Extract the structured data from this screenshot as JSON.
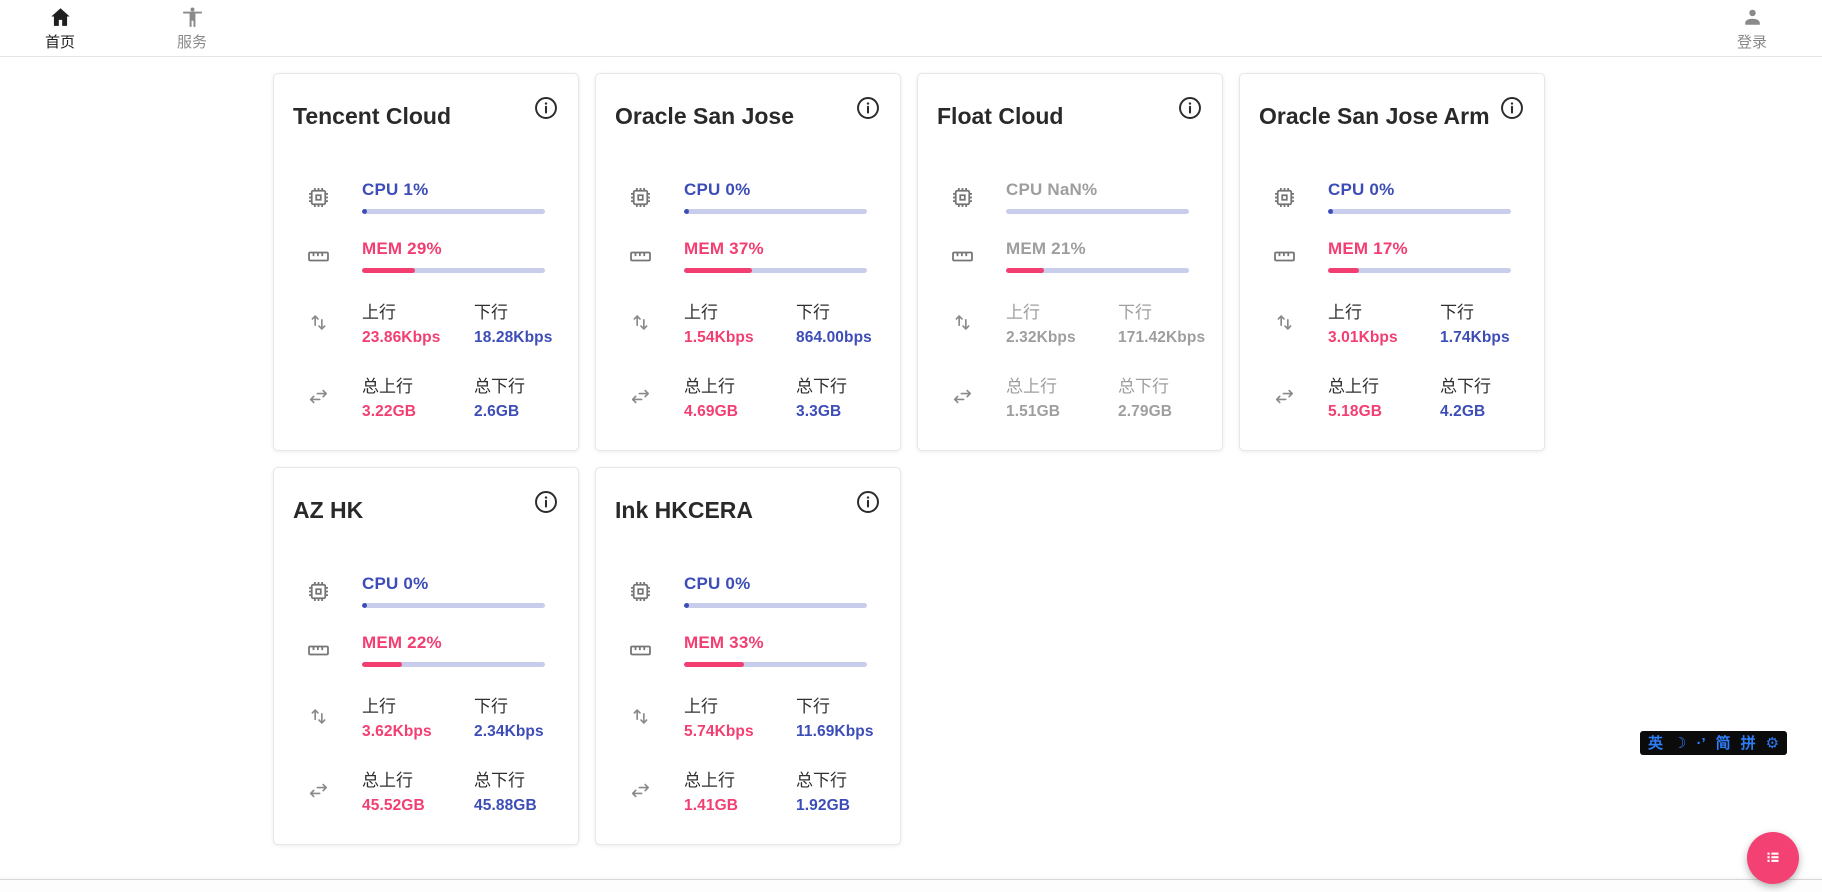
{
  "colors": {
    "accent_blue": "#3D4DB7",
    "accent_pink": "#F23E71",
    "muted_gray": "#9E9E9E",
    "progress_track": "#C9CDEC",
    "ime_blue": "#2E7CF6",
    "fab_pink": "#F34173"
  },
  "nav": {
    "home": {
      "label": "首页"
    },
    "services": {
      "label": "服务"
    },
    "login": {
      "label": "登录"
    }
  },
  "card_labels": {
    "up": "上行",
    "down": "下行",
    "total_up": "总上行",
    "total_down": "总下行"
  },
  "servers": [
    {
      "name": "Tencent Cloud",
      "cpu_text": "CPU 1%",
      "cpu_pct": 1,
      "mem_text": "MEM 29%",
      "mem_pct": 29,
      "up": "23.86Kbps",
      "down": "18.28Kbps",
      "total_up": "3.22GB",
      "total_down": "2.6GB",
      "offline": false
    },
    {
      "name": "Oracle San Jose",
      "cpu_text": "CPU 0%",
      "cpu_pct": 0,
      "mem_text": "MEM 37%",
      "mem_pct": 37,
      "up": "1.54Kbps",
      "down": "864.00bps",
      "total_up": "4.69GB",
      "total_down": "3.3GB",
      "offline": false
    },
    {
      "name": "Float Cloud",
      "cpu_text": "CPU NaN%",
      "cpu_pct": null,
      "mem_text": "MEM 21%",
      "mem_pct": 21,
      "up": "2.32Kbps",
      "down": "171.42Kbps",
      "total_up": "1.51GB",
      "total_down": "2.79GB",
      "offline": true
    },
    {
      "name": "Oracle San Jose Arm",
      "cpu_text": "CPU 0%",
      "cpu_pct": 0,
      "mem_text": "MEM 17%",
      "mem_pct": 17,
      "up": "3.01Kbps",
      "down": "1.74Kbps",
      "total_up": "5.18GB",
      "total_down": "4.2GB",
      "offline": false
    },
    {
      "name": "AZ HK",
      "cpu_text": "CPU 0%",
      "cpu_pct": 0,
      "mem_text": "MEM 22%",
      "mem_pct": 22,
      "up": "3.62Kbps",
      "down": "2.34Kbps",
      "total_up": "45.52GB",
      "total_down": "45.88GB",
      "offline": false
    },
    {
      "name": "Ink HKCERA",
      "cpu_text": "CPU 0%",
      "cpu_pct": 0,
      "mem_text": "MEM 33%",
      "mem_pct": 33,
      "up": "5.74Kbps",
      "down": "11.69Kbps",
      "total_up": "1.41GB",
      "total_down": "1.92GB",
      "offline": false
    }
  ],
  "ime_bar": {
    "keys": [
      {
        "name": "ime-english-key",
        "label": "英"
      },
      {
        "name": "moon-icon",
        "label": "☽"
      },
      {
        "name": "ime-punctuation-key",
        "label": "·’"
      },
      {
        "name": "ime-simplified-key",
        "label": "简"
      },
      {
        "name": "ime-pinyin-key",
        "label": "拼"
      },
      {
        "name": "gear-icon",
        "label": "⚙"
      }
    ]
  }
}
